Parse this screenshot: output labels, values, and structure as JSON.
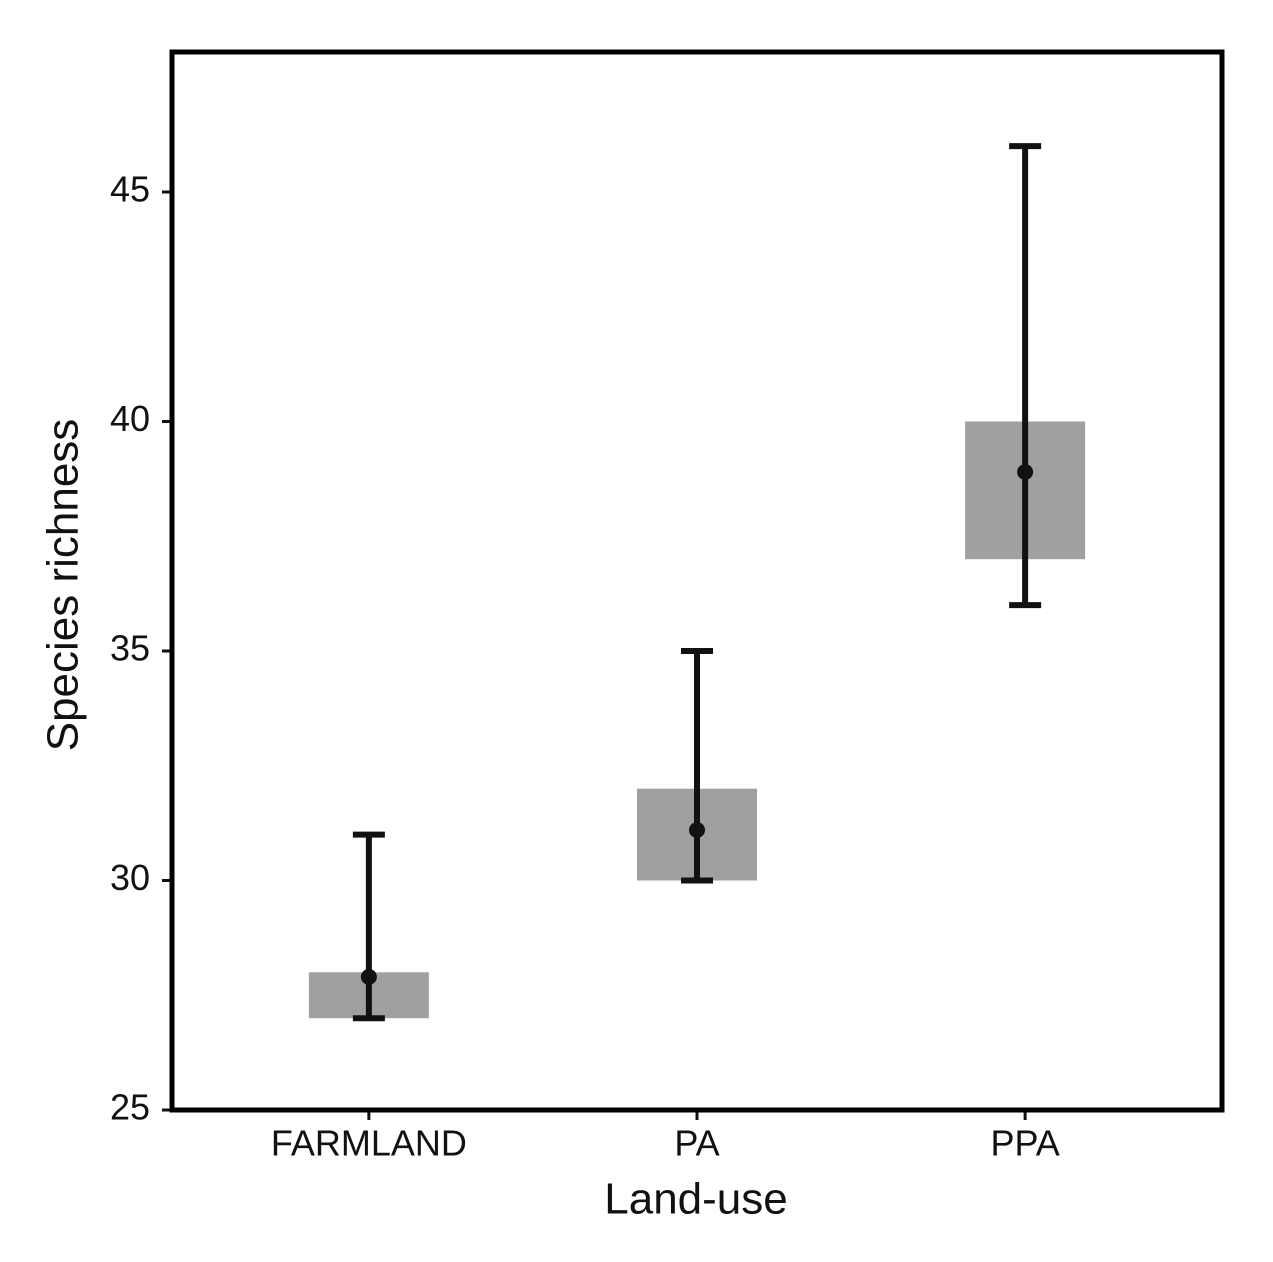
{
  "chart_data": {
    "type": "box",
    "x_label": "Land-use",
    "y_label": "Species richness",
    "categories": [
      "FARMLAND",
      "PA",
      "PPA"
    ],
    "box_low": [
      27,
      30,
      37
    ],
    "box_high": [
      28,
      32,
      40
    ],
    "whisker_low": [
      27,
      30,
      36
    ],
    "whisker_high": [
      31,
      35,
      46
    ],
    "point": [
      27.9,
      31.1,
      38.9
    ],
    "box_color": "#a0a0a0",
    "line_color": "#111111",
    "ylim": [
      25,
      48.05
    ],
    "yticks": [
      25,
      30,
      35,
      40,
      45
    ],
    "grid": false
  }
}
